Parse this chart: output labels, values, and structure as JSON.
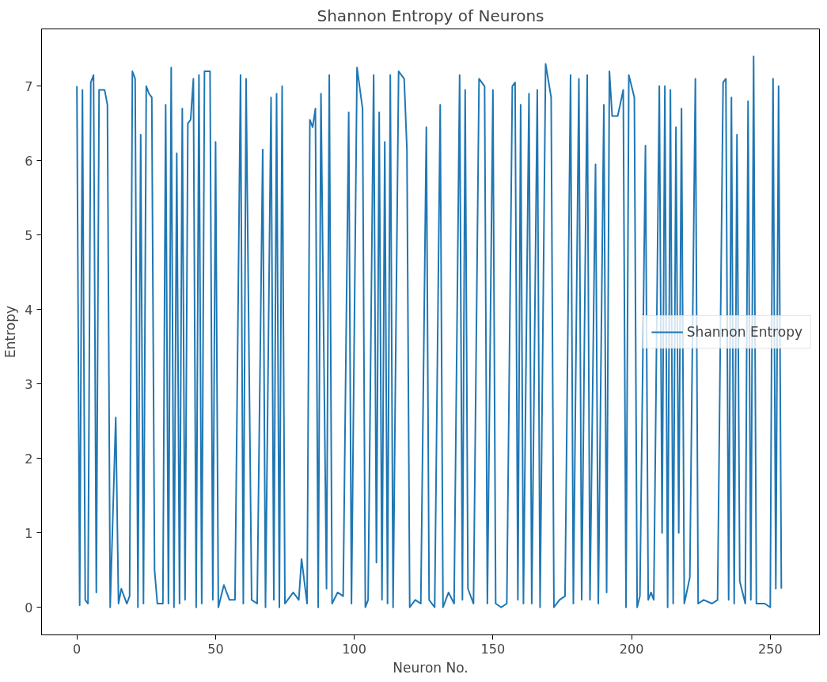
{
  "chart_data": {
    "type": "line",
    "title": "Shannon Entropy of Neurons",
    "xlabel": "Neuron No.",
    "ylabel": "Entropy",
    "xlim": [
      -12.75,
      267.75
    ],
    "ylim": [
      -0.37,
      7.77
    ],
    "xticks": [
      0,
      50,
      100,
      150,
      200,
      250
    ],
    "yticks": [
      0,
      1,
      2,
      3,
      4,
      5,
      6,
      7
    ],
    "grid": false,
    "legend": "right",
    "marker": "none",
    "line_style": "solid",
    "series": [
      {
        "name": "Shannon Entropy",
        "color": "#1f77b4",
        "x": [
          0,
          1,
          2,
          3,
          4,
          5,
          6,
          7,
          8,
          10,
          11,
          12,
          14,
          15,
          16,
          18,
          19,
          20,
          21,
          22,
          23,
          24,
          25,
          26,
          27,
          28,
          29,
          31,
          32,
          33,
          34,
          35,
          36,
          37,
          38,
          39,
          40,
          41,
          42,
          43,
          44,
          45,
          46,
          48,
          49,
          50,
          51,
          53,
          55,
          57,
          59,
          60,
          61,
          63,
          65,
          67,
          68,
          70,
          71,
          72,
          73,
          74,
          75,
          78,
          80,
          81,
          83,
          84,
          85,
          86,
          87,
          88,
          90,
          91,
          92,
          94,
          96,
          98,
          99,
          101,
          103,
          104,
          105,
          107,
          108,
          109,
          110,
          111,
          112,
          113,
          114,
          116,
          118,
          119,
          120,
          122,
          124,
          126,
          127,
          129,
          131,
          132,
          134,
          136,
          138,
          139,
          140,
          141,
          143,
          145,
          147,
          148,
          150,
          151,
          153,
          155,
          157,
          158,
          159,
          160,
          161,
          163,
          164,
          166,
          167,
          169,
          171,
          172,
          174,
          176,
          178,
          179,
          181,
          182,
          184,
          185,
          187,
          188,
          190,
          191,
          192,
          193,
          195,
          197,
          198,
          199,
          201,
          202,
          203,
          205,
          206,
          207,
          208,
          210,
          211,
          212,
          213,
          214,
          215,
          216,
          217,
          218,
          219,
          221,
          223,
          224,
          226,
          229,
          231,
          233,
          234,
          235,
          236,
          237,
          238,
          239,
          241,
          242,
          243,
          244,
          245,
          248,
          250,
          251,
          252,
          253,
          254
        ],
        "values": [
          7.0,
          0.03,
          6.95,
          0.1,
          0.05,
          7.05,
          7.15,
          0.2,
          6.95,
          6.95,
          6.75,
          0.0,
          2.55,
          0.05,
          0.25,
          0.05,
          0.15,
          7.2,
          7.1,
          0.0,
          6.35,
          0.05,
          7.0,
          6.9,
          6.85,
          0.5,
          0.05,
          0.05,
          6.75,
          0.05,
          7.25,
          0.0,
          6.1,
          0.05,
          6.7,
          0.1,
          6.5,
          6.55,
          7.1,
          0.0,
          7.15,
          0.05,
          7.2,
          7.2,
          0.1,
          6.25,
          0.0,
          0.3,
          0.1,
          0.1,
          7.15,
          0.05,
          7.1,
          0.1,
          0.05,
          6.15,
          0.0,
          6.85,
          0.1,
          6.9,
          0.0,
          7.0,
          0.05,
          0.2,
          0.1,
          0.65,
          0.05,
          6.55,
          6.45,
          6.7,
          0.0,
          6.9,
          0.25,
          7.15,
          0.05,
          0.2,
          0.15,
          6.65,
          0.05,
          7.25,
          6.7,
          0.0,
          0.1,
          7.15,
          0.6,
          6.65,
          0.1,
          6.25,
          0.05,
          7.15,
          0.0,
          7.2,
          7.1,
          6.15,
          0.0,
          0.1,
          0.05,
          6.45,
          0.1,
          0.0,
          6.75,
          0.0,
          0.2,
          0.05,
          7.15,
          0.1,
          6.95,
          0.25,
          0.05,
          7.1,
          7.0,
          0.05,
          6.95,
          0.05,
          0.0,
          0.05,
          7.0,
          7.05,
          0.1,
          6.75,
          0.05,
          6.9,
          0.05,
          6.95,
          0.0,
          7.3,
          6.85,
          0.0,
          0.1,
          0.15,
          7.15,
          0.05,
          7.1,
          0.1,
          7.15,
          0.1,
          5.95,
          0.05,
          6.75,
          0.2,
          7.2,
          6.6,
          6.6,
          6.95,
          0.0,
          7.15,
          6.85,
          0.0,
          0.15,
          6.2,
          0.1,
          0.2,
          0.1,
          7.0,
          1.0,
          7.0,
          0.0,
          6.95,
          0.05,
          6.45,
          1.0,
          6.7,
          0.05,
          0.4,
          7.1,
          0.05,
          0.1,
          0.05,
          0.1,
          7.05,
          7.1,
          0.1,
          6.85,
          0.05,
          6.35,
          0.35,
          0.05,
          6.8,
          0.1,
          7.4,
          0.05,
          0.05,
          0.0,
          7.1,
          0.25,
          7.0,
          0.25
        ]
      }
    ]
  }
}
